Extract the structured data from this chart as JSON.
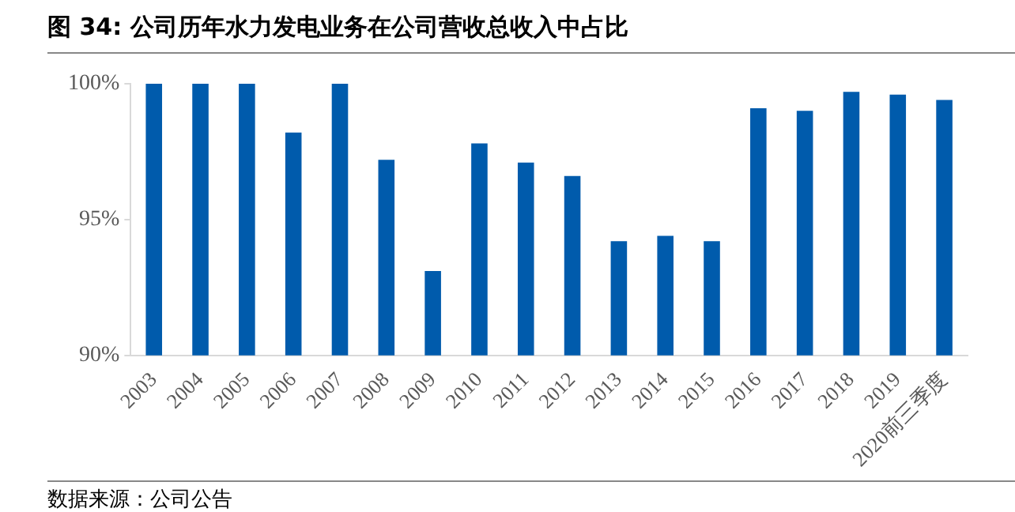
{
  "chart_data": {
    "type": "bar",
    "title": "图 34:  公司历年水力发电业务在公司营收总收入中占比",
    "categories": [
      "2003",
      "2004",
      "2005",
      "2006",
      "2007",
      "2008",
      "2009",
      "2010",
      "2011",
      "2012",
      "2013",
      "2014",
      "2015",
      "2016",
      "2017",
      "2018",
      "2019",
      "2020前三季度"
    ],
    "values": [
      100,
      100,
      100,
      98.2,
      100,
      97.2,
      93.1,
      97.8,
      97.1,
      96.6,
      94.2,
      94.4,
      94.2,
      99.1,
      99.0,
      99.7,
      99.6,
      99.4
    ],
    "color": "#005bac",
    "ylim": [
      90,
      100
    ],
    "yticks": [
      {
        "value": 90,
        "label": "90%"
      },
      {
        "value": 95,
        "label": "95%"
      },
      {
        "value": 100,
        "label": "100%"
      }
    ],
    "grid": false,
    "legend": false,
    "annotations": [
      "数据来源：公司公告"
    ]
  }
}
